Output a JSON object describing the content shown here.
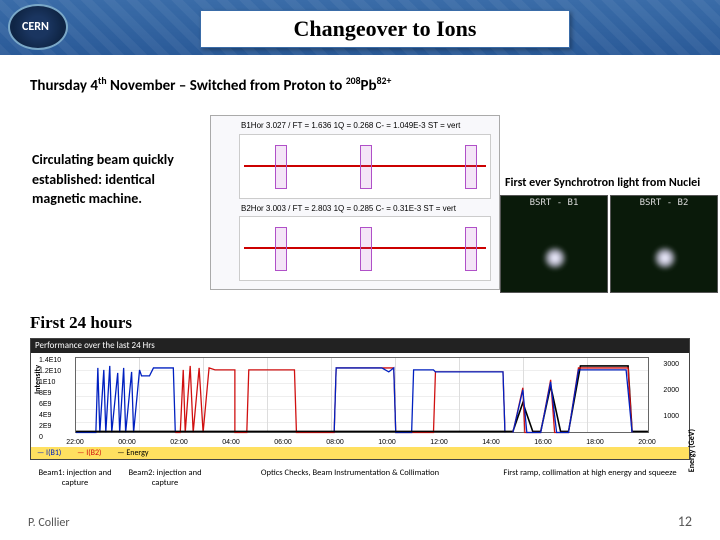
{
  "title": "Changeover to Ions",
  "subtitle_parts": {
    "p1": "Thursday 4",
    "sup1": "th",
    "p2": " November – Switched from Proton to ",
    "sup2": "208",
    "p3": "Pb",
    "sup3": "82+"
  },
  "circulating_text": "Circulating beam quickly established: identical magnetic machine.",
  "beam_headers": {
    "top": "B1Hor   3.027 / FT  = 1.636  1Q = 0.268  C- = 1.049E-3  ST = vert",
    "bot": "B2Hor   3.003 / FT  = 2.803  1Q = 0.285  C- = 0.31E-3   ST = vert"
  },
  "sync_text": "First ever Synchrotron light from Nuclei",
  "bsrt": {
    "b1": "BSRT - B1",
    "b2": "BSRT - B2"
  },
  "first24_label": "First 24 hours",
  "perf": {
    "title": "Performance over the last 24 Hrs",
    "ylabel_left": "Intensity",
    "ylabel_right": "Energy (GeV)",
    "yticks_left": [
      "1.4E10",
      "1.2E10",
      "1E10",
      "8E9",
      "6E9",
      "4E9",
      "2E9",
      "0"
    ],
    "yticks_right": [
      "3000",
      "2000",
      "1000"
    ],
    "xticks": [
      "22:00",
      "00:00",
      "02:00",
      "04:00",
      "06:00",
      "08:00",
      "10:00",
      "12:00",
      "14:00",
      "16:00",
      "18:00",
      "20:00"
    ],
    "legend": {
      "b1": "— I(B1)",
      "b2": "— I(B2)",
      "en": "— Energy"
    },
    "colors": {
      "b1": "#0020c0",
      "b2": "#d01010",
      "energy": "#000000"
    }
  },
  "captions": [
    "Beam1:\ninjection and\ncapture",
    "Beam2:\ninjection and\ncapture",
    "Optics Checks, Beam\nInstrumentation & Collimation",
    "First ramp, collimation at high\nenergy and squeeze"
  ],
  "footer": {
    "author": "P. Collier",
    "page": "12"
  }
}
